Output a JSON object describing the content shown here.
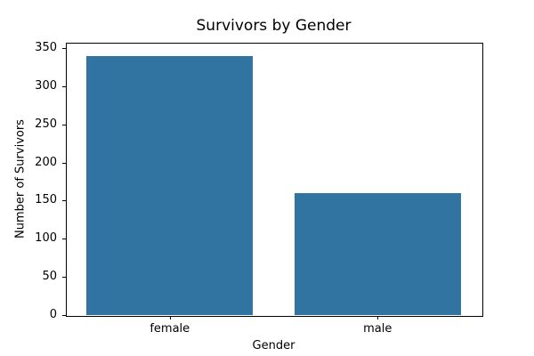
{
  "chart_data": {
    "type": "bar",
    "title": "Survivors by Gender",
    "xlabel": "Gender",
    "ylabel": "Number of Survivors",
    "categories": [
      "female",
      "male"
    ],
    "values": [
      340,
      160
    ],
    "yticks": [
      0,
      50,
      100,
      150,
      200,
      250,
      300,
      350
    ],
    "ylim": [
      0,
      357
    ],
    "bar_color": "#3274a1",
    "background": "#ffffff",
    "grid": false,
    "legend": "none"
  }
}
